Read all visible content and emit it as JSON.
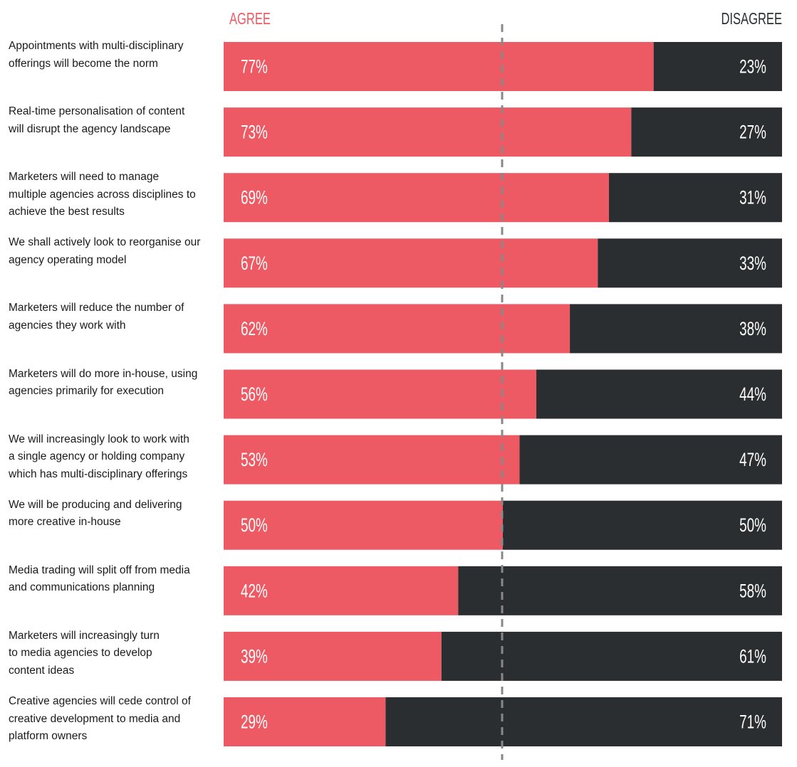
{
  "chart_data": {
    "type": "bar",
    "stacked": true,
    "orientation": "horizontal",
    "legend_labels": {
      "agree": "AGREE",
      "disagree": "DISAGREE"
    },
    "colors": {
      "agree": "#ee5a63",
      "disagree": "#2b2e30",
      "divider": "#888888",
      "agree_heading": "#ee5a63",
      "disagree_heading": "#2b2e30"
    },
    "value_suffix": "%",
    "divider_at": 50,
    "xlim": [
      0,
      100
    ],
    "categories": [
      "Appointments with multi-disciplinary offerings will become the norm",
      "Real-time personalisation of content will disrupt the agency landscape",
      "Marketers will need to manage multiple agencies across disciplines to achieve the best results",
      "We shall actively look to reorganise our agency operating model",
      "Marketers will reduce the number of agencies they work with",
      "Marketers will do more in-house, using agencies primarily for execution",
      "We will increasingly look to work with a single agency or holding company which has multi-disciplinary offerings",
      "We will be producing and delivering more creative in-house",
      "Media trading will split off from media and communications planning",
      "Marketers will increasingly turn to media agencies to develop content ideas",
      "Creative agencies will cede control of creative development to media and platform owners"
    ],
    "label_lines": [
      [
        "Appointments with multi-disciplinary",
        "offerings will become the norm"
      ],
      [
        "Real-time personalisation of content",
        "will disrupt the agency landscape"
      ],
      [
        "Marketers will need to manage",
        "multiple agencies across disciplines to",
        "achieve the best results"
      ],
      [
        "We shall actively look to reorganise our",
        "agency operating model"
      ],
      [
        "Marketers will reduce the number of",
        "agencies they work with"
      ],
      [
        "Marketers will do more in-house, using",
        "agencies primarily for execution"
      ],
      [
        "We will increasingly look to work with",
        "a single agency or holding company",
        "which has multi-disciplinary offerings"
      ],
      [
        "We will be producing and delivering",
        "more creative in-house"
      ],
      [
        "Media trading will split off from media",
        "and communications planning"
      ],
      [
        "Marketers will increasingly turn",
        "to media agencies to develop",
        "content ideas"
      ],
      [
        "Creative agencies will cede control of",
        "creative development to media and",
        "platform owners"
      ]
    ],
    "series": [
      {
        "name": "AGREE",
        "values": [
          77,
          73,
          69,
          67,
          62,
          56,
          53,
          50,
          42,
          39,
          29
        ]
      },
      {
        "name": "DISAGREE",
        "values": [
          23,
          27,
          31,
          33,
          38,
          44,
          47,
          50,
          58,
          61,
          71
        ]
      }
    ]
  }
}
